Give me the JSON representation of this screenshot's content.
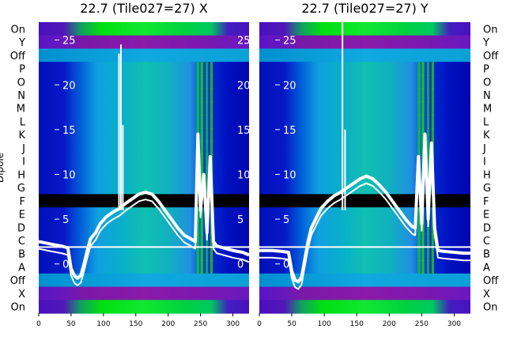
{
  "chart_data": [
    {
      "type": "heatmap",
      "title": "22.7 (Tile027=27) X",
      "ylabel": "Dipole",
      "x_ticks": [
        0,
        50,
        100,
        150,
        200,
        250,
        300
      ],
      "xlim": [
        0,
        325
      ],
      "dipole_labels": [
        "On",
        "Y",
        "Off",
        "P",
        "O",
        "N",
        "M",
        "L",
        "K",
        "J",
        "I",
        "H",
        "G",
        "F",
        "E",
        "D",
        "C",
        "B",
        "A",
        "Off",
        "X",
        "On"
      ],
      "inner_y_ticks": [
        25,
        20,
        15,
        10,
        5,
        0
      ],
      "inner_ylim": [
        -5.5,
        27
      ],
      "flagged_row": "F",
      "divider_between": [
        "C",
        "B"
      ],
      "spikes": [
        {
          "x": 124,
          "top": 23.5
        },
        {
          "x": 127,
          "top": 24.5
        },
        {
          "x": 130,
          "top": 15.5
        }
      ],
      "series_x": [
        0,
        20,
        35,
        45,
        50,
        55,
        60,
        65,
        70,
        75,
        80,
        88,
        95,
        105,
        115,
        125,
        135,
        145,
        155,
        165,
        175,
        185,
        195,
        205,
        215,
        225,
        235,
        242,
        246,
        250,
        255,
        260,
        265,
        270,
        275,
        285,
        300,
        315,
        325
      ],
      "series_y": [
        2.5,
        2.2,
        2.0,
        1.8,
        -0.5,
        -1.3,
        -1.6,
        -1.3,
        0.0,
        1.5,
        2.8,
        3.5,
        4.5,
        5.3,
        5.8,
        6.2,
        6.8,
        7.3,
        7.8,
        8.0,
        7.8,
        7.0,
        6.0,
        5.0,
        4.0,
        3.2,
        2.8,
        2.5,
        14.5,
        6.0,
        10.0,
        3.5,
        12.0,
        2.5,
        2.0,
        1.8,
        1.5,
        1.3,
        1.0
      ]
    },
    {
      "type": "heatmap",
      "title": "22.7 (Tile027=27) Y",
      "ylabel": "",
      "x_ticks": [
        0,
        50,
        100,
        150,
        200,
        250,
        300
      ],
      "xlim": [
        0,
        325
      ],
      "dipole_labels": [
        "On",
        "Y",
        "Off",
        "P",
        "O",
        "N",
        "M",
        "L",
        "K",
        "J",
        "I",
        "H",
        "G",
        "F",
        "E",
        "D",
        "C",
        "B",
        "A",
        "Off",
        "X",
        "On"
      ],
      "inner_y_ticks": [
        25,
        20,
        15,
        10,
        5,
        0
      ],
      "inner_ylim": [
        -5.5,
        27
      ],
      "flagged_row": "F",
      "divider_between": [
        "C",
        "B"
      ],
      "spikes": [
        {
          "x": 128,
          "top": 27
        },
        {
          "x": 132,
          "top": 15.0
        }
      ],
      "series_x": [
        0,
        20,
        35,
        45,
        50,
        55,
        60,
        65,
        70,
        75,
        80,
        88,
        95,
        105,
        115,
        125,
        135,
        145,
        155,
        165,
        175,
        185,
        195,
        205,
        215,
        225,
        235,
        240,
        245,
        250,
        255,
        260,
        265,
        270,
        275,
        285,
        300,
        315,
        325
      ],
      "series_y": [
        1.5,
        1.5,
        1.4,
        1.3,
        -0.8,
        -1.8,
        -2.0,
        -1.5,
        0.5,
        2.5,
        4.0,
        5.2,
        6.2,
        7.0,
        7.6,
        8.0,
        8.5,
        9.0,
        9.5,
        9.8,
        9.5,
        8.8,
        8.0,
        7.0,
        6.0,
        5.0,
        4.2,
        4.0,
        12.0,
        4.5,
        14.5,
        5.0,
        13.5,
        4.0,
        1.5,
        1.4,
        1.3,
        1.2,
        1.2
      ]
    }
  ]
}
